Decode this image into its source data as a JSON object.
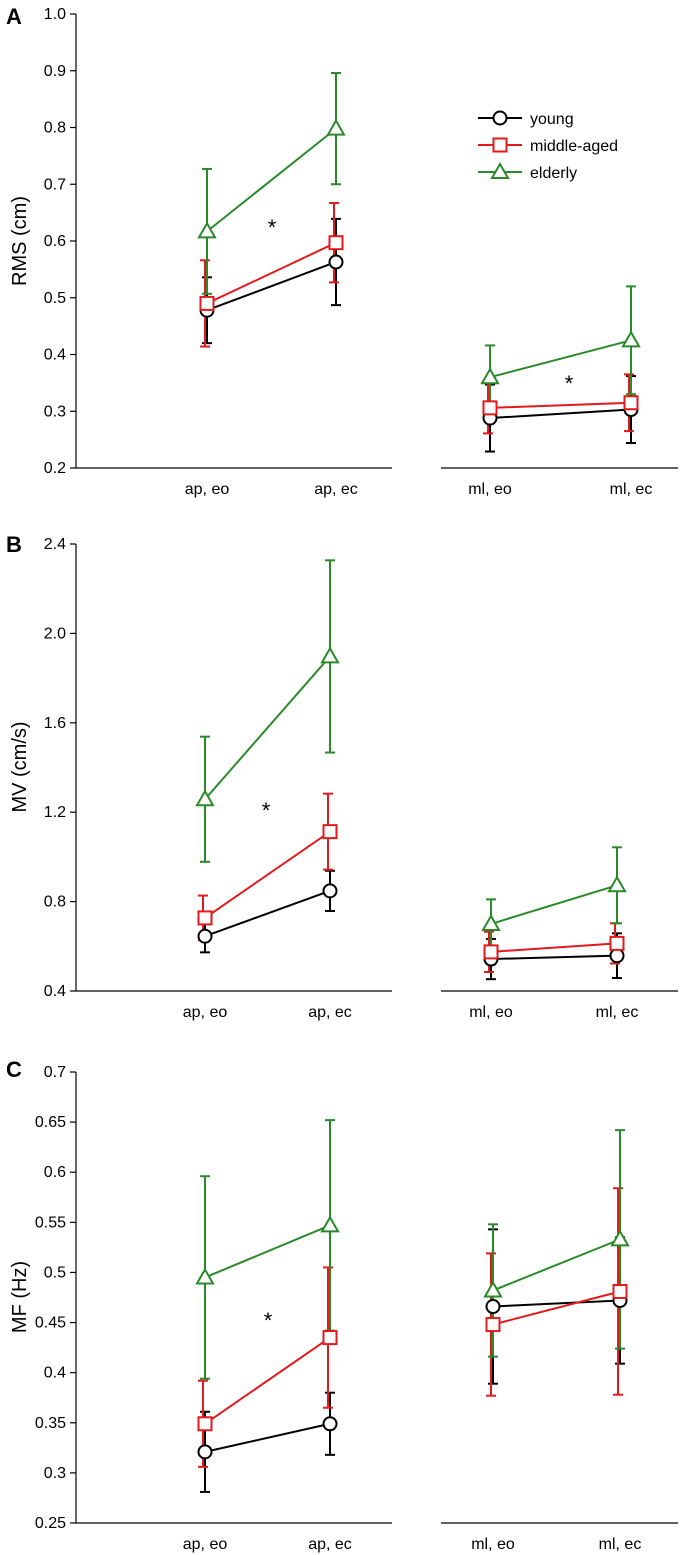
{
  "colors": {
    "young": "#000000",
    "middle-aged": "#e31a1c",
    "elderly": "#2a8a2a"
  },
  "legend": [
    {
      "key": "young",
      "label": "young",
      "marker": "circle"
    },
    {
      "key": "middle-aged",
      "label": "middle-aged",
      "marker": "square"
    },
    {
      "key": "elderly",
      "label": "elderly",
      "marker": "triangle"
    }
  ],
  "chart_data": [
    {
      "panel": "A",
      "type": "line",
      "ylabel": "RMS (cm)",
      "ylim": [
        0.2,
        1.0
      ],
      "yticks": [
        "0.2",
        "0.3",
        "0.4",
        "0.5",
        "0.6",
        "0.7",
        "0.8",
        "0.9",
        "1.0"
      ],
      "groups": [
        {
          "categories": [
            "ap, eo",
            "ap, ec"
          ],
          "annotation": "*"
        },
        {
          "categories": [
            "ml, eo",
            "ml, ec"
          ],
          "annotation": "*"
        }
      ],
      "legend_shown": true,
      "legend_position": "top-right",
      "series": [
        {
          "name": "young",
          "values": [
            [
              0.478,
              0.563
            ],
            [
              0.288,
              0.303
            ]
          ],
          "errors": [
            [
              0.058,
              0.076
            ],
            [
              0.059,
              0.059
            ]
          ]
        },
        {
          "name": "middle-aged",
          "values": [
            [
              0.49,
              0.597
            ],
            [
              0.306,
              0.315
            ]
          ],
          "errors": [
            [
              0.076,
              0.07
            ],
            [
              0.045,
              0.05
            ]
          ]
        },
        {
          "name": "elderly",
          "values": [
            [
              0.617,
              0.798
            ],
            [
              0.36,
              0.425
            ]
          ],
          "errors": [
            [
              0.11,
              0.098
            ],
            [
              0.056,
              0.095
            ]
          ]
        }
      ]
    },
    {
      "panel": "B",
      "type": "line",
      "ylabel": "MV (cm/s)",
      "ylim": [
        0.4,
        2.4
      ],
      "yticks": [
        "0.4",
        "0.8",
        "1.2",
        "1.6",
        "2.0",
        "2.4"
      ],
      "groups": [
        {
          "categories": [
            "ap, eo",
            "ap, ec"
          ],
          "annotation": "*"
        },
        {
          "categories": [
            "ml, eo",
            "ml, ec"
          ],
          "annotation": ""
        }
      ],
      "legend_shown": false,
      "series": [
        {
          "name": "young",
          "values": [
            [
              0.645,
              0.848
            ],
            [
              0.543,
              0.558
            ]
          ],
          "errors": [
            [
              0.072,
              0.09
            ],
            [
              0.09,
              0.1
            ]
          ]
        },
        {
          "name": "middle-aged",
          "values": [
            [
              0.727,
              1.113
            ],
            [
              0.575,
              0.613
            ]
          ],
          "errors": [
            [
              0.1,
              0.17
            ],
            [
              0.09,
              0.09
            ]
          ]
        },
        {
          "name": "elderly",
          "values": [
            [
              1.258,
              1.897
            ],
            [
              0.7,
              0.873
            ]
          ],
          "errors": [
            [
              0.28,
              0.43
            ],
            [
              0.11,
              0.17
            ]
          ]
        }
      ]
    },
    {
      "panel": "C",
      "type": "line",
      "ylabel": "MF (Hz)",
      "ylim": [
        0.25,
        0.7
      ],
      "yticks": [
        "0.25",
        "0.3",
        "0.35",
        "0.4",
        "0.45",
        "0.5",
        "0.55",
        "0.6",
        "0.65",
        "0.7"
      ],
      "groups": [
        {
          "categories": [
            "ap, eo",
            "ap, ec"
          ],
          "annotation": "*"
        },
        {
          "categories": [
            "ml, eo",
            "ml, ec"
          ],
          "annotation": ""
        }
      ],
      "legend_shown": false,
      "series": [
        {
          "name": "young",
          "values": [
            [
              0.321,
              0.349
            ],
            [
              0.466,
              0.472
            ]
          ],
          "errors": [
            [
              0.04,
              0.031
            ],
            [
              0.077,
              0.063
            ]
          ]
        },
        {
          "name": "middle-aged",
          "values": [
            [
              0.349,
              0.435
            ],
            [
              0.448,
              0.481
            ]
          ],
          "errors": [
            [
              0.043,
              0.07
            ],
            [
              0.071,
              0.103
            ]
          ]
        },
        {
          "name": "elderly",
          "values": [
            [
              0.495,
              0.547
            ],
            [
              0.482,
              0.533
            ]
          ],
          "errors": [
            [
              0.101,
              0.105
            ],
            [
              0.066,
              0.109
            ]
          ]
        }
      ]
    }
  ]
}
